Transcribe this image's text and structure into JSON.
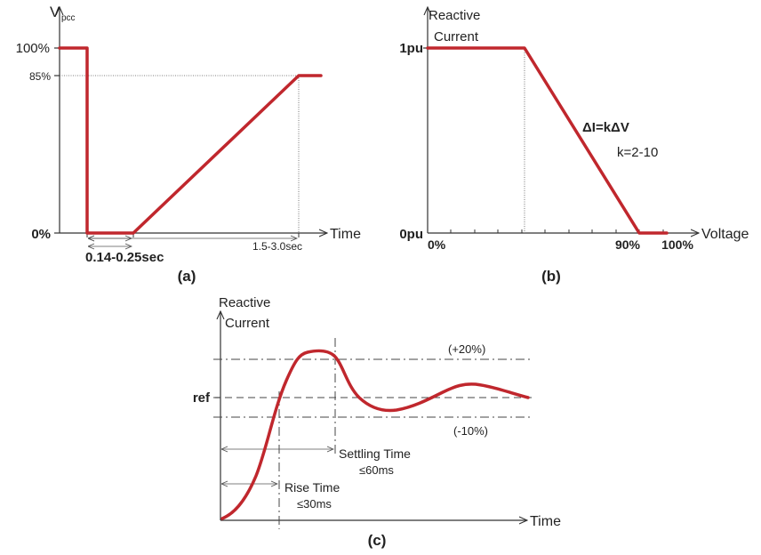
{
  "colors": {
    "curve": "#c0272d",
    "axis": "#333333"
  },
  "chart_data": [
    {
      "id": "a",
      "type": "line",
      "ylabel_main": "V",
      "ylabel_sub": "pcc",
      "xlabel": "Time",
      "caption": "(a)",
      "y_ticks": [
        "100%",
        "85%",
        "0%"
      ],
      "annot_dip": "0.14-0.25sec",
      "annot_recovery": "1.5-3.0sec",
      "series": [
        {
          "x": [
            "0",
            "t_fault",
            "t_fault",
            "t_hold",
            "t_recover",
            "end"
          ],
          "y": [
            100,
            100,
            0,
            0,
            85,
            85
          ]
        }
      ]
    },
    {
      "id": "b",
      "type": "line",
      "ylabel_line1": "Reactive",
      "ylabel_line2": "Current",
      "xlabel": "Voltage",
      "caption": "(b)",
      "y_ticks": [
        "1pu",
        "0pu"
      ],
      "x_ticks": [
        "0%",
        "90%",
        "100%"
      ],
      "eq1": "ΔI=kΔV",
      "eq2": "k=2-10",
      "series": [
        {
          "x_pct": [
            0,
            50,
            90,
            100
          ],
          "y_pu": [
            1,
            1,
            0,
            0
          ]
        }
      ]
    },
    {
      "id": "c",
      "type": "line",
      "ylabel_line1": "Reactive",
      "ylabel_line2": "Current",
      "xlabel": "Time",
      "caption": "(c)",
      "ref_label": "ref",
      "upper_band": "(+20%)",
      "lower_band": "(-10%)",
      "settling_line1": "Settling Time",
      "settling_line2": "≤60ms",
      "rise_line1": "Rise Time",
      "rise_line2": "≤30ms"
    }
  ]
}
